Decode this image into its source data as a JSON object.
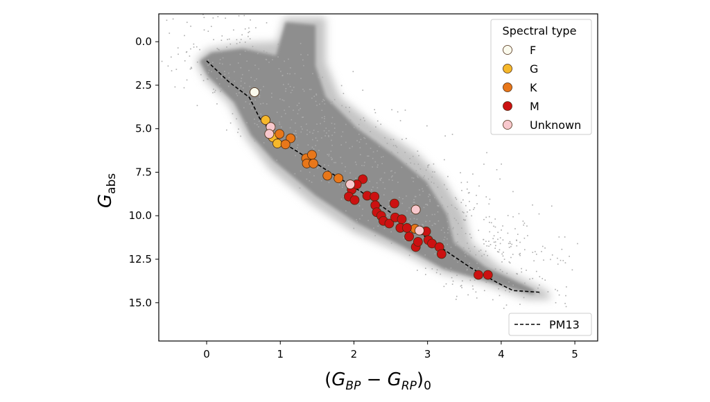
{
  "chart_data": {
    "type": "scatter",
    "title": "",
    "xlabel": "(G_BP − G_RP)_0",
    "xlabel_parts": {
      "open": "(",
      "G1": "G",
      "sub1": "BP",
      "minus": " − ",
      "G2": "G",
      "sub2": "RP",
      "close": ")",
      "sub0": "0"
    },
    "ylabel": "G_abs",
    "ylabel_parts": {
      "main": "G",
      "sub": "abs"
    },
    "xlim": [
      -0.65,
      5.31
    ],
    "ylim": [
      17.2,
      -1.6
    ],
    "y_inverted": true,
    "xticks": [
      0,
      1,
      2,
      3,
      4,
      5
    ],
    "xtick_labels": [
      "0",
      "1",
      "2",
      "3",
      "4",
      "5"
    ],
    "yticks": [
      0,
      2.5,
      5,
      7.5,
      10,
      12.5,
      15
    ],
    "ytick_labels": [
      "0.0",
      "2.5",
      "5.0",
      "7.5",
      "10.0",
      "12.5",
      "15.0"
    ],
    "grid": false,
    "legend": {
      "title": "Spectral type",
      "placement": "top-right"
    },
    "legend2": {
      "placement": "bottom-right"
    },
    "series": [
      {
        "name": "F",
        "color": "#fbfbee",
        "points": [
          [
            0.65,
            2.9
          ]
        ]
      },
      {
        "name": "G",
        "color": "#f6b82b",
        "points": [
          [
            0.8,
            4.5
          ],
          [
            0.9,
            5.5
          ],
          [
            0.96,
            5.85
          ]
        ]
      },
      {
        "name": "K",
        "color": "#e8771a",
        "points": [
          [
            0.99,
            5.3
          ],
          [
            1.14,
            5.55
          ],
          [
            1.07,
            5.9
          ],
          [
            1.35,
            6.7
          ],
          [
            1.43,
            6.5
          ],
          [
            1.36,
            7.0
          ],
          [
            1.45,
            7.0
          ],
          [
            1.64,
            7.7
          ],
          [
            1.79,
            7.85
          ],
          [
            2.83,
            10.75
          ]
        ]
      },
      {
        "name": "M",
        "color": "#cc1111",
        "points": [
          [
            2.12,
            7.9
          ],
          [
            1.97,
            8.5
          ],
          [
            2.04,
            8.2
          ],
          [
            1.93,
            8.9
          ],
          [
            2.01,
            9.1
          ],
          [
            2.18,
            8.85
          ],
          [
            2.28,
            8.9
          ],
          [
            2.29,
            9.4
          ],
          [
            2.55,
            9.3
          ],
          [
            2.31,
            9.8
          ],
          [
            2.37,
            10.0
          ],
          [
            2.4,
            10.3
          ],
          [
            2.48,
            10.45
          ],
          [
            2.56,
            10.1
          ],
          [
            2.65,
            10.2
          ],
          [
            2.63,
            10.7
          ],
          [
            2.72,
            10.7
          ],
          [
            2.75,
            11.2
          ],
          [
            2.98,
            10.9
          ],
          [
            3.01,
            11.4
          ],
          [
            3.06,
            11.6
          ],
          [
            3.16,
            11.8
          ],
          [
            3.19,
            12.2
          ],
          [
            2.84,
            11.8
          ],
          [
            2.87,
            11.5
          ],
          [
            3.69,
            13.4
          ],
          [
            3.82,
            13.4
          ]
        ]
      },
      {
        "name": "Unknown",
        "color": "#f8c8cd",
        "points": [
          [
            0.87,
            4.9
          ],
          [
            0.85,
            5.3
          ],
          [
            1.95,
            8.2
          ],
          [
            2.84,
            9.65
          ],
          [
            2.89,
            10.85
          ]
        ]
      }
    ],
    "reference_line": {
      "name": "PM13",
      "style": "dashed",
      "points": [
        [
          0.0,
          1.1
        ],
        [
          0.3,
          2.3
        ],
        [
          0.58,
          3.2
        ],
        [
          0.72,
          4.4
        ],
        [
          0.96,
          5.6
        ],
        [
          1.34,
          6.6
        ],
        [
          1.71,
          7.6
        ],
        [
          2.09,
          8.6
        ],
        [
          2.56,
          10.0
        ],
        [
          3.03,
          11.4
        ],
        [
          3.59,
          13.0
        ],
        [
          3.97,
          13.9
        ],
        [
          4.16,
          14.3
        ],
        [
          4.53,
          14.4
        ]
      ]
    }
  }
}
